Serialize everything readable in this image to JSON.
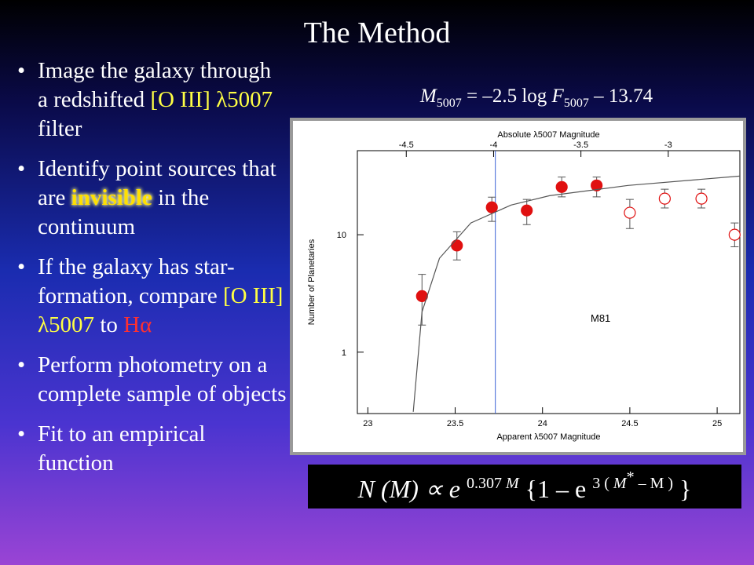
{
  "title": "The Method",
  "bullets": [
    [
      "Image the galaxy through a redshifted ",
      "[O III] λ5007",
      " filter"
    ],
    [
      "Identify point sources that are ",
      "invisible",
      " in the continuum"
    ],
    [
      "If the galaxy has star-formation, compare ",
      "[O III] λ5007",
      " to ",
      "Hα"
    ],
    [
      "Perform photometry on a complete sample of objects"
    ],
    [
      "Fit to an empirical function"
    ]
  ],
  "formula_top": [
    "M",
    "5007",
    " = –2.5 log ",
    "F",
    "5007",
    " – 13.74"
  ],
  "formula_bottom": [
    "N (M) ∝ e ",
    "0.307 ",
    "M",
    " {1 – e ",
    "3 ( ",
    "M",
    "*",
    " – M )",
    " }"
  ],
  "chart_data": {
    "type": "scatter",
    "top_axis_label": "Absolute λ5007 Magnitude",
    "x_label": "Apparent λ5007 Magnitude",
    "y_label": "Number of Planetaries",
    "annotation": "M81",
    "xlim": [
      22.94,
      25.13
    ],
    "xticks": [
      23,
      23.5,
      24,
      24.5,
      25
    ],
    "x2lim": [
      -4.78,
      -2.59
    ],
    "x2ticks": [
      -4.5,
      -4,
      -3.5,
      -3
    ],
    "ylim": [
      0.3,
      52
    ],
    "yticks": [
      1,
      10
    ],
    "log_y": true,
    "reference_x": 23.73,
    "reference_color": "#3b62d6",
    "series": [
      {
        "style": "filled",
        "color": "#e01010",
        "x": [
          23.31,
          23.51,
          23.71,
          23.91,
          24.11,
          24.31
        ],
        "values": [
          3.0,
          8.1,
          17.1,
          16.1,
          25.5,
          26.3
        ],
        "lower": [
          1.7,
          6.1,
          13.0,
          12.2,
          21,
          21
        ],
        "upper": [
          4.6,
          10.6,
          20.9,
          20.0,
          31,
          31
        ]
      },
      {
        "style": "open",
        "color": "#e01010",
        "x": [
          24.5,
          24.7,
          24.91,
          25.1
        ],
        "values": [
          15.4,
          20.3,
          20.3,
          10
        ],
        "lower": [
          11.3,
          16.9,
          16.9,
          7.9
        ],
        "upper": [
          20,
          24.4,
          24.4,
          12.6
        ]
      },
      {
        "style": "line",
        "color": "#555555",
        "x": [
          23.26,
          23.31,
          23.41,
          23.59,
          23.82,
          24.04,
          24.49,
          25.13
        ],
        "values": [
          0.31,
          2.2,
          6.3,
          12.6,
          17.9,
          21.5,
          26.3,
          31.6
        ]
      }
    ]
  }
}
